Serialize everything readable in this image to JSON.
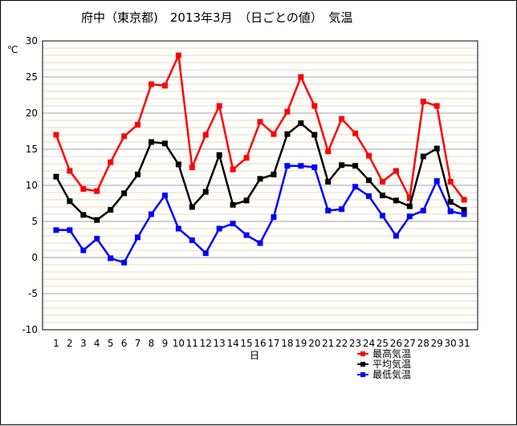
{
  "chart_data": {
    "type": "line",
    "title": "府中（東京都)　2013年3月　（日ごとの値）　気温",
    "xlabel": "日",
    "ylabel": "℃",
    "ylim": [
      -10,
      30
    ],
    "yticks": [
      30,
      25,
      20,
      15,
      10,
      5,
      0,
      -5,
      -10
    ],
    "x": [
      1,
      2,
      3,
      4,
      5,
      6,
      7,
      8,
      9,
      10,
      11,
      12,
      13,
      14,
      15,
      16,
      17,
      18,
      19,
      20,
      21,
      22,
      23,
      24,
      25,
      26,
      27,
      28,
      29,
      30,
      31
    ],
    "grid": true,
    "legend_position": "bottom-right",
    "series": [
      {
        "name": "最高気温",
        "color": "#ff0000",
        "values": [
          17.0,
          12.0,
          9.5,
          9.2,
          13.2,
          16.8,
          18.4,
          24.0,
          23.8,
          28.0,
          12.5,
          17.0,
          21.0,
          12.2,
          13.8,
          18.8,
          17.1,
          20.2,
          25.0,
          21.0,
          14.7,
          19.2,
          17.2,
          14.1,
          10.5,
          12.0,
          8.2,
          21.6,
          21.0,
          10.5,
          8.0
        ]
      },
      {
        "name": "平均気温",
        "color": "#000000",
        "values": [
          11.2,
          7.8,
          5.9,
          5.2,
          6.6,
          8.9,
          11.5,
          16.0,
          15.8,
          12.9,
          7.0,
          9.1,
          14.2,
          7.3,
          7.9,
          10.9,
          11.5,
          17.1,
          18.6,
          17.0,
          10.5,
          12.8,
          12.7,
          10.7,
          8.6,
          7.9,
          7.1,
          14.0,
          15.1,
          7.7,
          6.6
        ]
      },
      {
        "name": "最低気温",
        "color": "#0000ff",
        "values": [
          3.8,
          3.8,
          1.0,
          2.6,
          -0.1,
          -0.7,
          2.8,
          6.0,
          8.6,
          4.0,
          2.4,
          0.6,
          4.0,
          4.7,
          3.1,
          2.0,
          5.6,
          12.7,
          12.7,
          12.5,
          6.5,
          6.7,
          9.8,
          8.5,
          5.8,
          3.0,
          5.7,
          6.5,
          10.6,
          6.4,
          6.0
        ]
      }
    ]
  }
}
